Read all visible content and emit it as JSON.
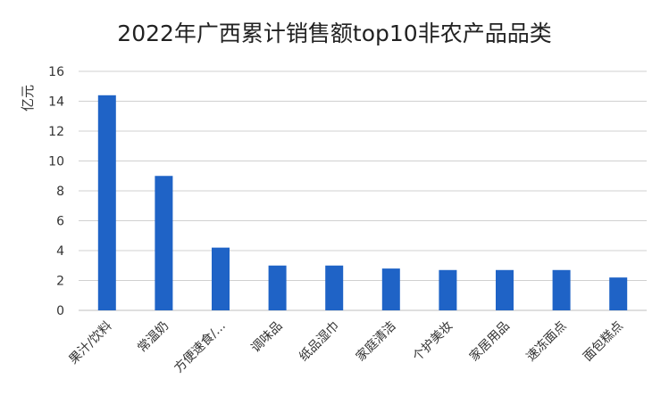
{
  "chart_data": {
    "type": "bar",
    "title": "2022年广西累计销售额top10非农产品品类",
    "xlabel": "",
    "ylabel": "亿元",
    "categories": [
      "果汁/饮料",
      "常温奶",
      "方便速食/...",
      "调味品",
      "纸品湿巾",
      "家庭清洁",
      "个护美妆",
      "家居用品",
      "速冻面点",
      "面包糕点"
    ],
    "values": [
      14.4,
      9.0,
      4.2,
      3.0,
      3.0,
      2.8,
      2.7,
      2.7,
      2.7,
      2.2
    ],
    "ylim": [
      0,
      16
    ],
    "yticks": [
      "0",
      "2",
      "4",
      "6",
      "8",
      "10",
      "12",
      "14",
      "16"
    ],
    "grid": true,
    "legend": "none",
    "bar_color": "#1f63c6",
    "grid_color": "#d0d0d0"
  }
}
